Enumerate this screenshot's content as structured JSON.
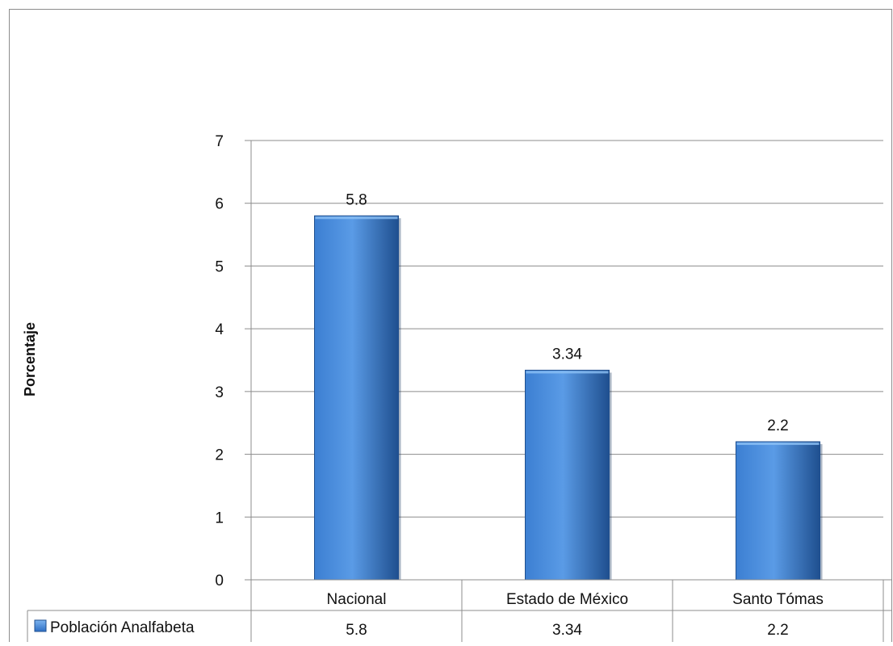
{
  "chart_data": {
    "type": "bar",
    "title": "",
    "xlabel": "",
    "ylabel": "Porcentaje",
    "ylim": [
      0,
      7
    ],
    "yticks": [
      "0",
      "1",
      "2",
      "3",
      "4",
      "5",
      "6",
      "7"
    ],
    "grid": true,
    "categories": [
      "Nacional",
      "Estado de México",
      "Santo Tómas"
    ],
    "series": [
      {
        "name": "Población Analfabeta",
        "values": [
          5.8,
          3.34,
          2.2
        ],
        "labels": [
          "5.8",
          "3.34",
          "2.2"
        ]
      }
    ],
    "data_table": {
      "visible": true,
      "row_label": "Población Analfabeta",
      "cells": [
        "5.8",
        "3.34",
        "2.2"
      ]
    },
    "colors": {
      "bar_top": "#5A9BE6",
      "bar_mid": "#3C7FD2",
      "bar_edge": "#1F4F8F",
      "grid": "#8c8c8c",
      "frame": "#8c8c8c"
    }
  }
}
